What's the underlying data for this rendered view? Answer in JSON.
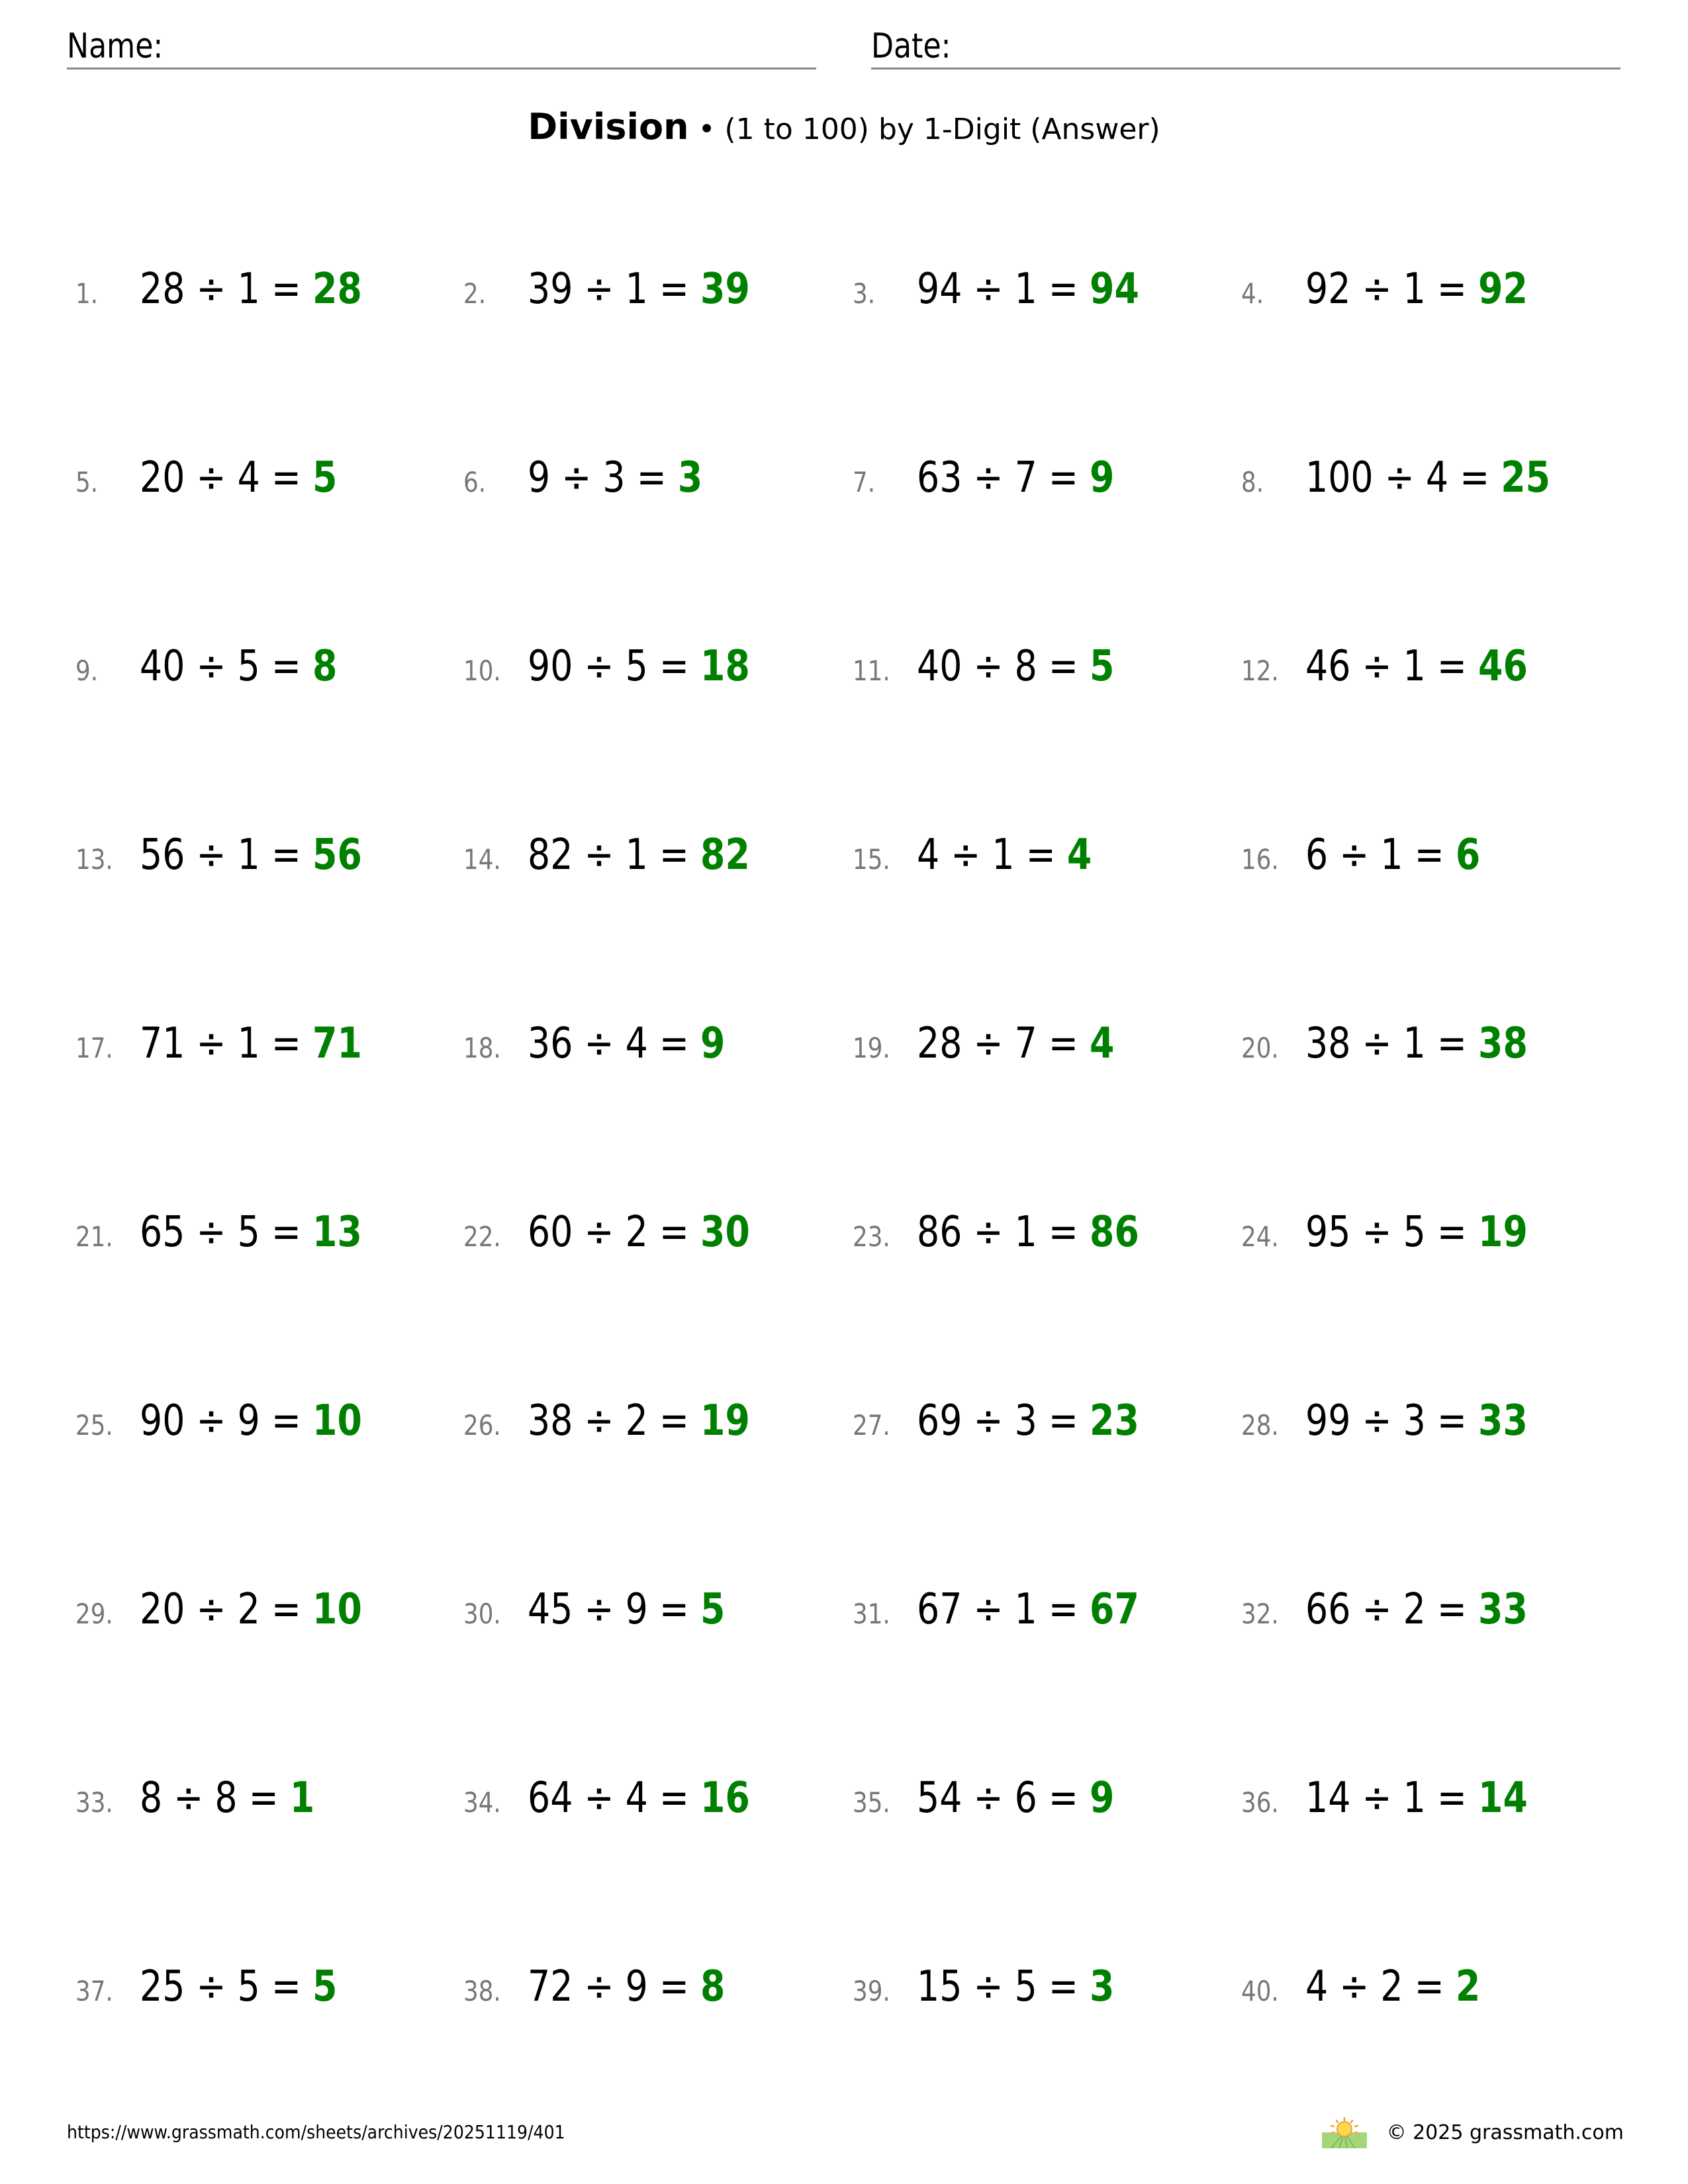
{
  "header": {
    "name_label": "Name:",
    "date_label": "Date:"
  },
  "title": {
    "main": "Division",
    "separator": " • ",
    "subtitle": "(1 to 100) by 1-Digit (Answer)"
  },
  "colors": {
    "answer": "#008000",
    "number": "#777777",
    "line": "#888888"
  },
  "problems": [
    {
      "n": "1.",
      "a": "28",
      "b": "1",
      "ans": "28"
    },
    {
      "n": "2.",
      "a": "39",
      "b": "1",
      "ans": "39"
    },
    {
      "n": "3.",
      "a": "94",
      "b": "1",
      "ans": "94"
    },
    {
      "n": "4.",
      "a": "92",
      "b": "1",
      "ans": "92"
    },
    {
      "n": "5.",
      "a": "20",
      "b": "4",
      "ans": "5"
    },
    {
      "n": "6.",
      "a": "9",
      "b": "3",
      "ans": "3"
    },
    {
      "n": "7.",
      "a": "63",
      "b": "7",
      "ans": "9"
    },
    {
      "n": "8.",
      "a": "100",
      "b": "4",
      "ans": "25"
    },
    {
      "n": "9.",
      "a": "40",
      "b": "5",
      "ans": "8"
    },
    {
      "n": "10.",
      "a": "90",
      "b": "5",
      "ans": "18"
    },
    {
      "n": "11.",
      "a": "40",
      "b": "8",
      "ans": "5"
    },
    {
      "n": "12.",
      "a": "46",
      "b": "1",
      "ans": "46"
    },
    {
      "n": "13.",
      "a": "56",
      "b": "1",
      "ans": "56"
    },
    {
      "n": "14.",
      "a": "82",
      "b": "1",
      "ans": "82"
    },
    {
      "n": "15.",
      "a": "4",
      "b": "1",
      "ans": "4"
    },
    {
      "n": "16.",
      "a": "6",
      "b": "1",
      "ans": "6"
    },
    {
      "n": "17.",
      "a": "71",
      "b": "1",
      "ans": "71"
    },
    {
      "n": "18.",
      "a": "36",
      "b": "4",
      "ans": "9"
    },
    {
      "n": "19.",
      "a": "28",
      "b": "7",
      "ans": "4"
    },
    {
      "n": "20.",
      "a": "38",
      "b": "1",
      "ans": "38"
    },
    {
      "n": "21.",
      "a": "65",
      "b": "5",
      "ans": "13"
    },
    {
      "n": "22.",
      "a": "60",
      "b": "2",
      "ans": "30"
    },
    {
      "n": "23.",
      "a": "86",
      "b": "1",
      "ans": "86"
    },
    {
      "n": "24.",
      "a": "95",
      "b": "5",
      "ans": "19"
    },
    {
      "n": "25.",
      "a": "90",
      "b": "9",
      "ans": "10"
    },
    {
      "n": "26.",
      "a": "38",
      "b": "2",
      "ans": "19"
    },
    {
      "n": "27.",
      "a": "69",
      "b": "3",
      "ans": "23"
    },
    {
      "n": "28.",
      "a": "99",
      "b": "3",
      "ans": "33"
    },
    {
      "n": "29.",
      "a": "20",
      "b": "2",
      "ans": "10"
    },
    {
      "n": "30.",
      "a": "45",
      "b": "9",
      "ans": "5"
    },
    {
      "n": "31.",
      "a": "67",
      "b": "1",
      "ans": "67"
    },
    {
      "n": "32.",
      "a": "66",
      "b": "2",
      "ans": "33"
    },
    {
      "n": "33.",
      "a": "8",
      "b": "8",
      "ans": "1"
    },
    {
      "n": "34.",
      "a": "64",
      "b": "4",
      "ans": "16"
    },
    {
      "n": "35.",
      "a": "54",
      "b": "6",
      "ans": "9"
    },
    {
      "n": "36.",
      "a": "14",
      "b": "1",
      "ans": "14"
    },
    {
      "n": "37.",
      "a": "25",
      "b": "5",
      "ans": "5"
    },
    {
      "n": "38.",
      "a": "72",
      "b": "9",
      "ans": "8"
    },
    {
      "n": "39.",
      "a": "15",
      "b": "5",
      "ans": "3"
    },
    {
      "n": "40.",
      "a": "4",
      "b": "2",
      "ans": "2"
    }
  ],
  "footer": {
    "url": "https://www.grassmath.com/sheets/archives/20251119/401",
    "copyright": "© 2025 grassmath.com",
    "logo_icon": "sun-over-grass-icon"
  }
}
